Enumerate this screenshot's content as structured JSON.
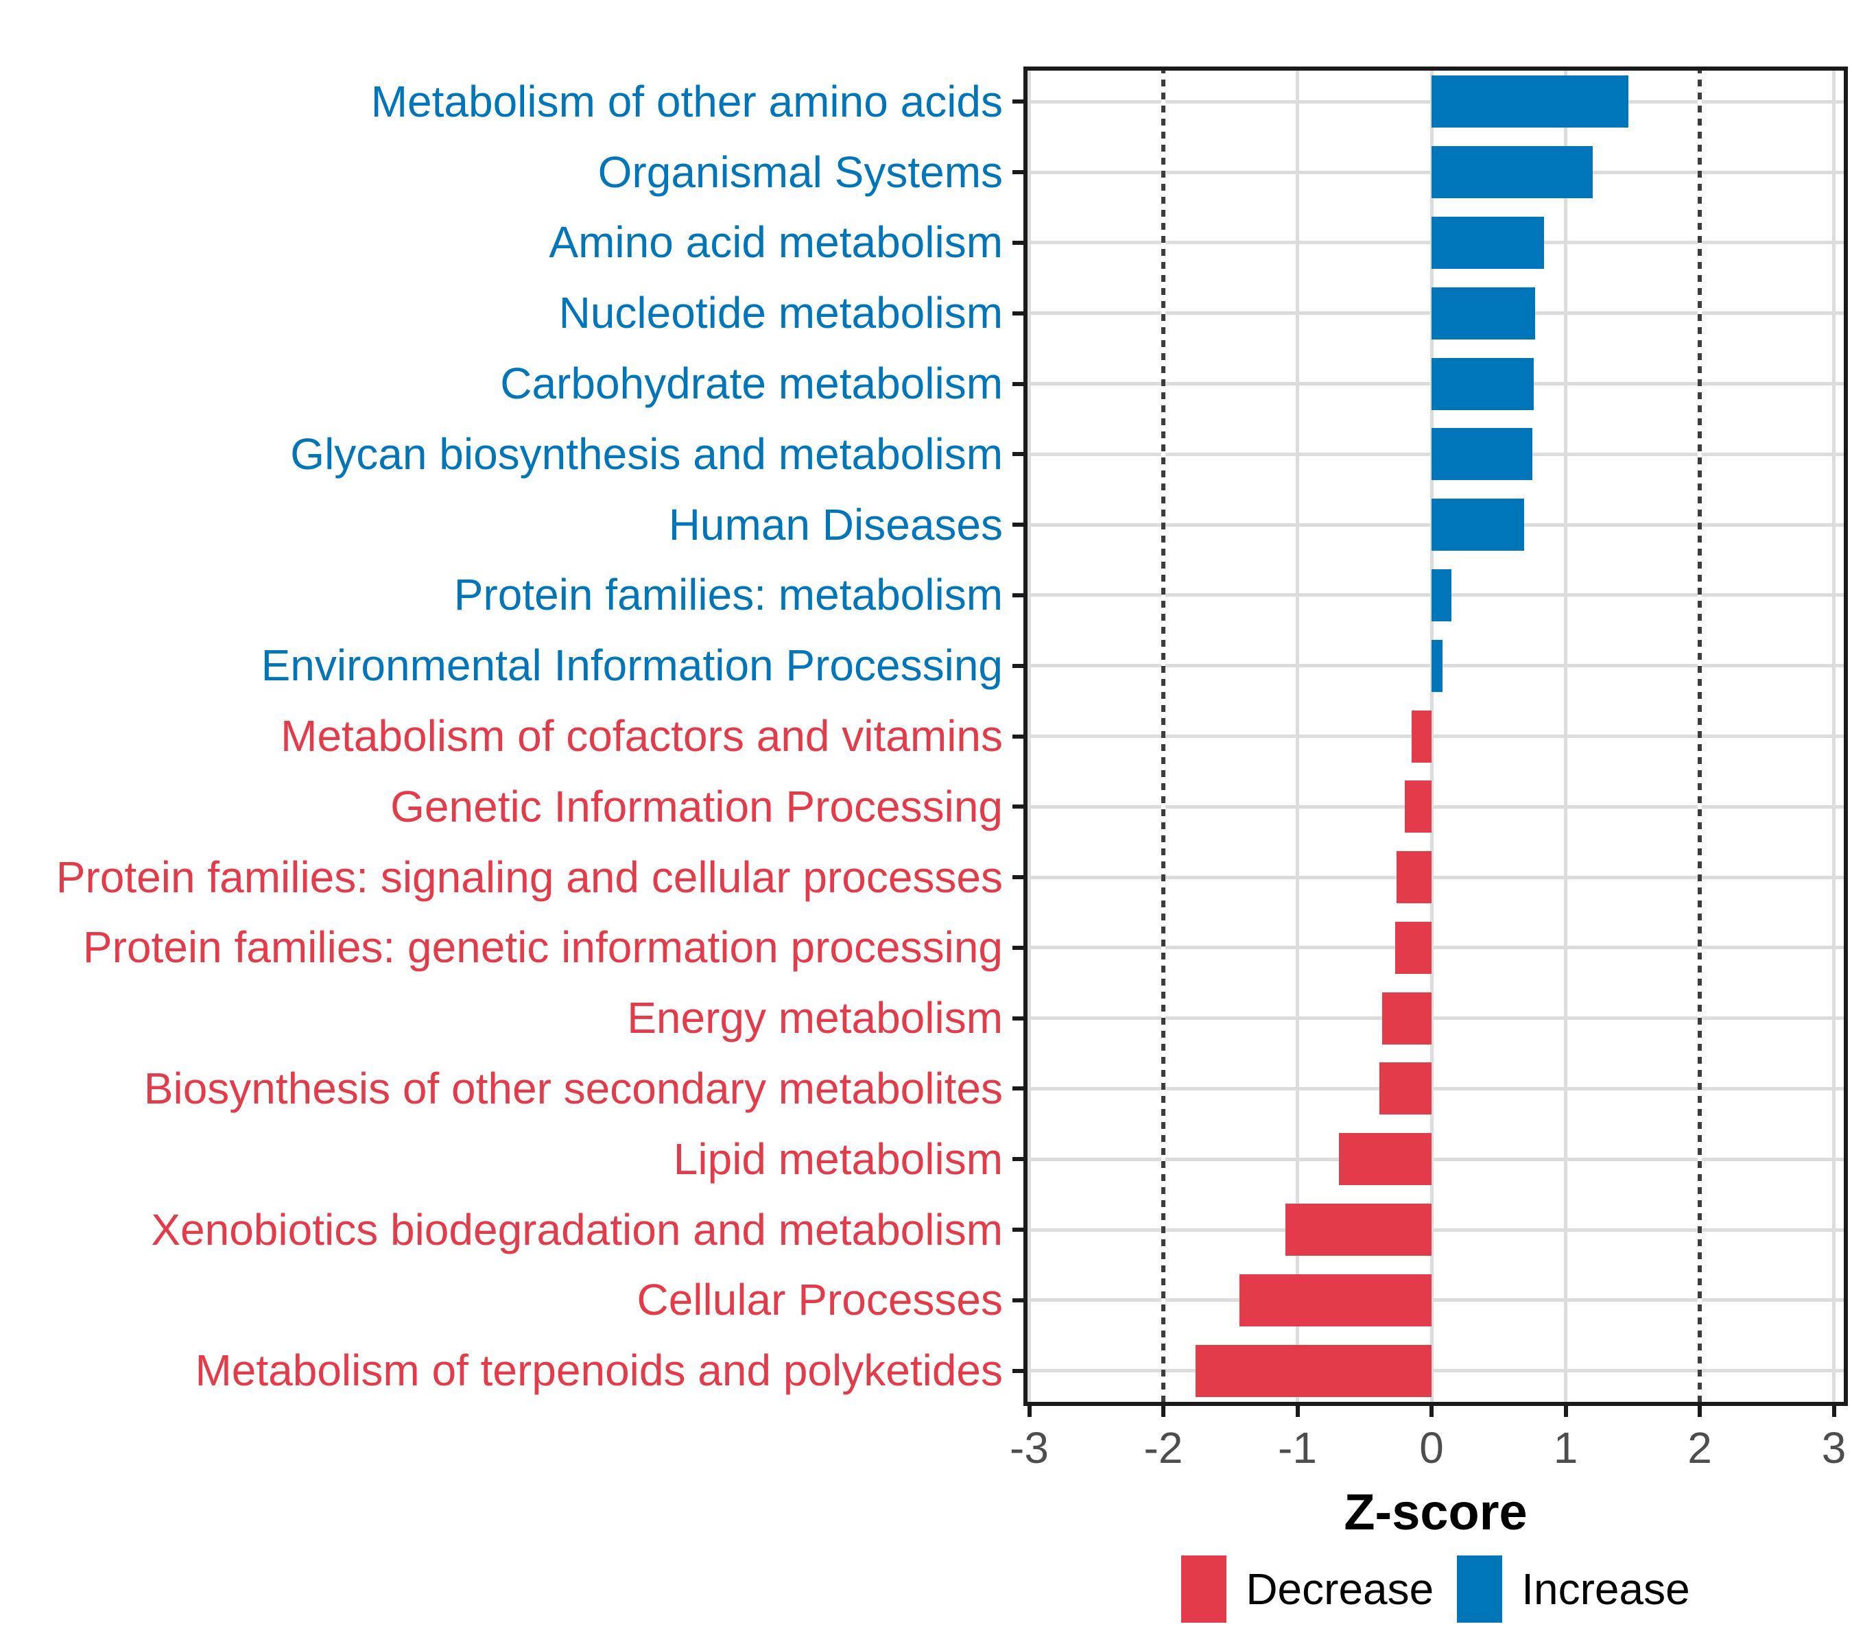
{
  "chart_data": {
    "type": "bar",
    "orientation": "horizontal",
    "xlabel": "Z-score",
    "ylabel": "",
    "xlim": [
      -3,
      3
    ],
    "x_ticks": [
      {
        "value": -3,
        "label": "-3"
      },
      {
        "value": -2,
        "label": "-2"
      },
      {
        "value": -1,
        "label": "-1"
      },
      {
        "value": 0,
        "label": "0"
      },
      {
        "value": 1,
        "label": "1"
      },
      {
        "value": 2,
        "label": "2"
      },
      {
        "value": 3,
        "label": "3"
      }
    ],
    "guide_lines_x": [
      -2,
      2
    ],
    "grid": {
      "show": true,
      "color": "#dcdcdc"
    },
    "rows": [
      {
        "label": "Metabolism of other amino acids",
        "value": 1.47,
        "direction": "increase"
      },
      {
        "label": "Organismal Systems",
        "value": 1.2,
        "direction": "increase"
      },
      {
        "label": "Amino acid metabolism",
        "value": 0.84,
        "direction": "increase"
      },
      {
        "label": "Nucleotide metabolism",
        "value": 0.77,
        "direction": "increase"
      },
      {
        "label": "Carbohydrate metabolism",
        "value": 0.76,
        "direction": "increase"
      },
      {
        "label": "Glycan biosynthesis and metabolism",
        "value": 0.75,
        "direction": "increase"
      },
      {
        "label": "Human Diseases",
        "value": 0.69,
        "direction": "increase"
      },
      {
        "label": "Protein families: metabolism",
        "value": 0.15,
        "direction": "increase"
      },
      {
        "label": "Environmental Information Processing",
        "value": 0.08,
        "direction": "increase"
      },
      {
        "label": "Metabolism of cofactors and vitamins",
        "value": -0.15,
        "direction": "decrease"
      },
      {
        "label": "Genetic Information Processing",
        "value": -0.2,
        "direction": "decrease"
      },
      {
        "label": "Protein families: signaling and cellular processes",
        "value": -0.26,
        "direction": "decrease"
      },
      {
        "label": "Protein families: genetic information processing",
        "value": -0.27,
        "direction": "decrease"
      },
      {
        "label": "Energy metabolism",
        "value": -0.37,
        "direction": "decrease"
      },
      {
        "label": "Biosynthesis of other secondary metabolites",
        "value": -0.39,
        "direction": "decrease"
      },
      {
        "label": "Lipid metabolism",
        "value": -0.69,
        "direction": "decrease"
      },
      {
        "label": "Xenobiotics biodegradation and metabolism",
        "value": -1.09,
        "direction": "decrease"
      },
      {
        "label": "Cellular Processes",
        "value": -1.43,
        "direction": "decrease"
      },
      {
        "label": "Metabolism of terpenoids and polyketides",
        "value": -1.76,
        "direction": "decrease"
      }
    ],
    "colors": {
      "increase": "#0075BA",
      "decrease": "#E43B4B",
      "tick_label": "#4d4d4d",
      "panel_border": "#1a1a1a",
      "guide_line": "#3d3d3d"
    },
    "legend": {
      "position": "bottom",
      "items": [
        {
          "label": "Decrease",
          "key": "decrease"
        },
        {
          "label": "Increase",
          "key": "increase"
        }
      ]
    }
  }
}
